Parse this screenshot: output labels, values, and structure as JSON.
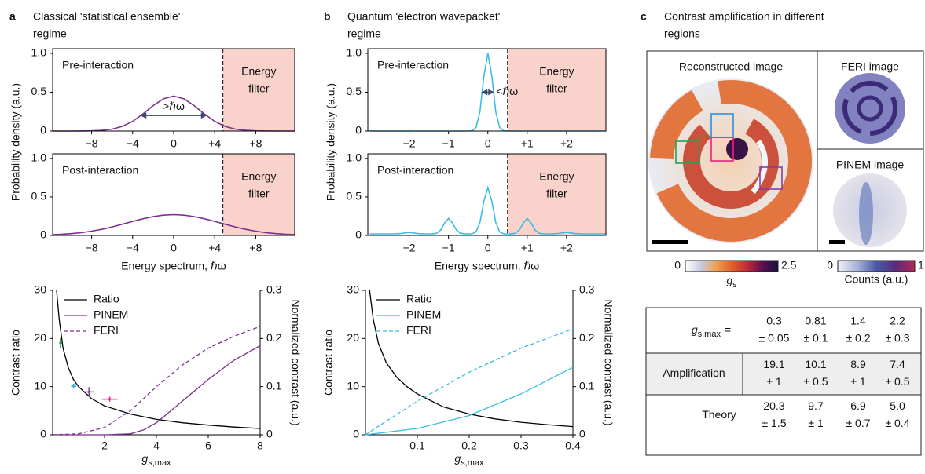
{
  "panels": [
    {
      "letter": "a",
      "title": [
        "Classical 'statistical ensemble'",
        "regime"
      ]
    },
    {
      "letter": "b",
      "title": [
        "Quantum 'electron wavepacket'",
        "regime"
      ]
    },
    {
      "letter": "c",
      "title": [
        "Contrast amplification in different",
        "regions"
      ]
    }
  ],
  "chart_data": [
    {
      "type": "distribution",
      "label": "Pre-interaction",
      "ylabel": "Probability density (a.u.)",
      "x": [
        -11.8,
        -11,
        -10,
        -9,
        -8,
        -7,
        -6,
        -5,
        -4,
        -3,
        -2,
        -1,
        0,
        1,
        2,
        3,
        4,
        5,
        6,
        7,
        8,
        9,
        10,
        11,
        11.8
      ],
      "series": [
        {
          "color": "#7d2f8f",
          "values": [
            0,
            0,
            0,
            0.001,
            0.003,
            0.009,
            0.025,
            0.061,
            0.125,
            0.219,
            0.327,
            0.415,
            0.45,
            0.415,
            0.327,
            0.219,
            0.125,
            0.061,
            0.025,
            0.009,
            0.003,
            0.001,
            0,
            0,
            0
          ]
        }
      ],
      "xlim": [
        -11.8,
        11.8
      ],
      "xticks": [
        {
          "value": -8,
          "label": "−8"
        },
        {
          "value": -4,
          "label": "−4"
        },
        0,
        {
          "value": 4,
          "label": "+4"
        },
        {
          "value": 8,
          "label": "+8"
        }
      ],
      "ylim": [
        0,
        1.06
      ],
      "yticks": [
        0,
        0.5,
        {
          "value": 1,
          "label": "1.0"
        }
      ],
      "filter": {
        "from": 4.8,
        "label": [
          "Energy",
          "filter"
        ],
        "color": "#f9d2cb"
      },
      "annotation": {
        "text": ">ℏω",
        "from": -3.2,
        "to": 3.2,
        "y": 0.2
      }
    },
    {
      "type": "distribution",
      "label": "Post-interaction",
      "xlabel": "Energy spectrum, ℏω",
      "x": [
        -11.8,
        -11,
        -10,
        -9,
        -8,
        -7,
        -6,
        -5,
        -4,
        -3,
        -2,
        -1,
        0,
        1,
        2,
        3,
        4,
        5,
        6,
        7,
        8,
        9,
        10,
        11,
        11.8
      ],
      "series": [
        {
          "color": "#7d2f8f",
          "values": [
            0.011,
            0.014,
            0.023,
            0.036,
            0.056,
            0.08,
            0.111,
            0.146,
            0.182,
            0.216,
            0.245,
            0.263,
            0.27,
            0.263,
            0.245,
            0.216,
            0.182,
            0.146,
            0.111,
            0.08,
            0.056,
            0.036,
            0.023,
            0.014,
            0.011
          ]
        }
      ],
      "xlim": [
        -11.8,
        11.8
      ],
      "xticks": [
        {
          "value": -8,
          "label": "−8"
        },
        {
          "value": -4,
          "label": "−4"
        },
        0,
        {
          "value": 4,
          "label": "+4"
        },
        {
          "value": 8,
          "label": "+8"
        }
      ],
      "ylim": [
        0,
        1.06
      ],
      "yticks": [
        0,
        0.5,
        {
          "value": 1,
          "label": "1.0"
        }
      ],
      "filter": {
        "from": 4.8,
        "label": [
          "Energy",
          "filter"
        ],
        "color": "#f9d2cb"
      }
    },
    {
      "type": "distribution",
      "label": "Pre-interaction",
      "ylabel": "Probability density (a.u.)",
      "x": [
        -3,
        -2.9,
        -2.8,
        -2.7,
        -2.6,
        -2.5,
        -2.4,
        -2.3,
        -2.2,
        -2.1,
        -2,
        -1.9,
        -1.8,
        -1.7,
        -1.6,
        -1.5,
        -1.4,
        -1.3,
        -1.2,
        -1.1,
        -1,
        -0.9,
        -0.8,
        -0.7,
        -0.6,
        -0.5,
        -0.4,
        -0.3,
        -0.2,
        -0.1,
        0,
        0.1,
        0.2,
        0.3,
        0.4,
        0.5,
        0.6,
        0.7,
        0.8,
        0.9,
        1,
        1.1,
        1.2,
        1.3,
        1.4,
        1.5,
        1.6,
        1.7,
        1.8,
        1.9,
        2,
        2.1,
        2.2,
        2.3,
        2.4,
        2.5,
        2.6,
        2.7,
        2.8,
        2.9,
        3
      ],
      "series": [
        {
          "color": "#3bbde3",
          "values": [
            0,
            0,
            0,
            0,
            0,
            0,
            0,
            0,
            0,
            0,
            0,
            0,
            0,
            0,
            0,
            0,
            0,
            0,
            0,
            0,
            0,
            0,
            0,
            0,
            0,
            0,
            0.004,
            0.044,
            0.249,
            0.707,
            1,
            0.707,
            0.249,
            0.044,
            0.004,
            0,
            0,
            0,
            0,
            0,
            0,
            0,
            0,
            0,
            0,
            0,
            0,
            0,
            0,
            0,
            0,
            0,
            0,
            0,
            0,
            0,
            0,
            0,
            0,
            0,
            0
          ]
        }
      ],
      "xlim": [
        -3.05,
        3.0
      ],
      "xticks": [
        {
          "value": -2,
          "label": "−2"
        },
        {
          "value": -1,
          "label": "−1"
        },
        0,
        {
          "value": 1,
          "label": "+1"
        },
        {
          "value": 2,
          "label": "+2"
        }
      ],
      "ylim": [
        0,
        1.06
      ],
      "yticks": [
        0,
        0.5,
        {
          "value": 1,
          "label": "1.0"
        }
      ],
      "filter": {
        "from": 0.5,
        "label": [
          "Energy",
          "filter"
        ],
        "color": "#f9d2cb"
      },
      "annotation": {
        "text": "<ℏω",
        "from": -0.15,
        "to": 0.15,
        "y": 0.5
      }
    },
    {
      "type": "distribution",
      "label": "Post-interaction",
      "xlabel": "Energy spectrum, ℏω",
      "x": [
        -3,
        -2.9,
        -2.8,
        -2.7,
        -2.6,
        -2.5,
        -2.4,
        -2.3,
        -2.2,
        -2.1,
        -2,
        -1.9,
        -1.8,
        -1.7,
        -1.6,
        -1.5,
        -1.4,
        -1.3,
        -1.2,
        -1.1,
        -1,
        -0.9,
        -0.8,
        -0.7,
        -0.6,
        -0.5,
        -0.4,
        -0.3,
        -0.2,
        -0.1,
        0,
        0.1,
        0.2,
        0.3,
        0.4,
        0.5,
        0.6,
        0.7,
        0.8,
        0.9,
        1,
        1.1,
        1.2,
        1.3,
        1.4,
        1.5,
        1.6,
        1.7,
        1.8,
        1.9,
        2,
        2.1,
        2.2,
        2.3,
        2.4,
        2.5,
        2.6,
        2.7,
        2.8,
        2.9,
        3
      ],
      "series": [
        {
          "color": "#3bbde3",
          "values": [
            0.02,
            0.02,
            0.02,
            0.02,
            0.02,
            0.02,
            0.02,
            0.022,
            0.025,
            0.034,
            0.04,
            0.034,
            0.025,
            0.022,
            0.02,
            0.02,
            0.021,
            0.029,
            0.07,
            0.161,
            0.22,
            0.161,
            0.07,
            0.029,
            0.021,
            0.02,
            0.022,
            0.046,
            0.169,
            0.444,
            0.62,
            0.444,
            0.169,
            0.046,
            0.022,
            0.02,
            0.021,
            0.029,
            0.07,
            0.161,
            0.22,
            0.161,
            0.07,
            0.029,
            0.021,
            0.02,
            0.02,
            0.022,
            0.025,
            0.034,
            0.04,
            0.034,
            0.025,
            0.022,
            0.02,
            0.02,
            0.02,
            0.02,
            0.02,
            0.02,
            0.02
          ]
        }
      ],
      "xlim": [
        -3.05,
        3.0
      ],
      "xticks": [
        {
          "value": -2,
          "label": "−2"
        },
        {
          "value": -1,
          "label": "−1"
        },
        0,
        {
          "value": 1,
          "label": "+1"
        },
        {
          "value": 2,
          "label": "+2"
        }
      ],
      "ylim": [
        0,
        1.06
      ],
      "yticks": [
        0,
        0.5,
        {
          "value": 1,
          "label": "1.0"
        }
      ],
      "filter": {
        "from": 0.5,
        "label": [
          "Energy",
          "filter"
        ],
        "color": "#f9d2cb"
      }
    },
    {
      "type": "dual",
      "ylabel": "Contrast ratio",
      "y2label": "Normalized contrast (a.u.)",
      "y2color": "#7d2f8f",
      "xlabel": {
        "symbol": "g",
        "subscript": "s,max"
      },
      "xlim": [
        0,
        8
      ],
      "xticks": [
        2,
        4,
        6,
        8
      ],
      "ylim": [
        0,
        30
      ],
      "yticks": [
        0,
        10,
        20,
        30
      ],
      "y2lim": [
        0,
        0.3
      ],
      "y2ticks": [
        0,
        0.1,
        0.2,
        0.3
      ],
      "series": [
        {
          "name": "Ratio",
          "color": "#000000",
          "x": [
            0.15,
            0.25,
            0.4,
            0.6,
            0.8,
            1,
            1.5,
            2,
            3,
            4,
            5,
            6,
            7,
            8
          ],
          "values": [
            30,
            24,
            18,
            14,
            11.5,
            10,
            7.5,
            6,
            4.3,
            3.2,
            2.5,
            2,
            1.6,
            1.3
          ]
        },
        {
          "name": "PINEM",
          "color": "#7d2f8f",
          "axis": "y2",
          "x": [
            0,
            2,
            3,
            3.5,
            4,
            5,
            6,
            7,
            8
          ],
          "values": [
            0,
            0,
            0.002,
            0.01,
            0.025,
            0.07,
            0.115,
            0.155,
            0.185
          ]
        },
        {
          "name": "FERI",
          "color": "#7d2f8f",
          "axis": "y2",
          "dash": true,
          "x": [
            0,
            1,
            2,
            3,
            4,
            5,
            6,
            7,
            8
          ],
          "values": [
            0,
            0.002,
            0.015,
            0.05,
            0.1,
            0.145,
            0.18,
            0.205,
            0.225
          ]
        }
      ],
      "points": [
        {
          "x": 0.3,
          "xerr": 0.05,
          "y": 19.1,
          "yerr": 1,
          "color": "#1fa650"
        },
        {
          "x": 0.81,
          "xerr": 0.1,
          "y": 10.1,
          "yerr": 0.5,
          "color": "#2bb3e0"
        },
        {
          "x": 1.4,
          "xerr": 0.2,
          "y": 8.9,
          "yerr": 1,
          "color": "#8a3d9a"
        },
        {
          "x": 2.2,
          "xerr": 0.3,
          "y": 7.4,
          "yerr": 0.5,
          "color": "#e8237f"
        }
      ]
    },
    {
      "type": "dual",
      "ylabel": "Contrast ratio",
      "y2label": "Normalized contrast (a.u.)",
      "y2color": "#3bbde3",
      "xlabel": {
        "symbol": "g",
        "subscript": "s,max"
      },
      "xlim": [
        0,
        0.4
      ],
      "xticks": [
        0.1,
        0.2,
        0.3,
        0.4
      ],
      "ylim": [
        0,
        30
      ],
      "yticks": [
        0,
        10,
        20,
        30
      ],
      "y2lim": [
        0,
        0.3
      ],
      "y2ticks": [
        0,
        0.1,
        0.2,
        0.3
      ],
      "series": [
        {
          "name": "Ratio",
          "color": "#000000",
          "x": [
            0.008,
            0.015,
            0.025,
            0.04,
            0.06,
            0.08,
            0.1,
            0.15,
            0.2,
            0.25,
            0.3,
            0.35,
            0.4
          ],
          "values": [
            30,
            24,
            19,
            15,
            12,
            10,
            8.5,
            5.8,
            4.3,
            3.3,
            2.6,
            2.1,
            1.7
          ]
        },
        {
          "name": "PINEM",
          "color": "#3bbde3",
          "axis": "y2",
          "x": [
            0,
            0.1,
            0.2,
            0.3,
            0.4
          ],
          "values": [
            0,
            0.013,
            0.04,
            0.085,
            0.14
          ]
        },
        {
          "name": "FERI",
          "color": "#3bbde3",
          "axis": "y2",
          "dash": true,
          "x": [
            0,
            0.05,
            0.1,
            0.15,
            0.2,
            0.25,
            0.3,
            0.35,
            0.4
          ],
          "values": [
            0,
            0.035,
            0.07,
            0.1,
            0.13,
            0.155,
            0.18,
            0.2,
            0.22
          ]
        }
      ]
    }
  ],
  "images": [
    {
      "label": "Reconstructed image",
      "colorbar": {
        "ticks": [
          0,
          2.5
        ],
        "colors": [
          "#ffffff",
          "#c8cbe0",
          "#f0a050",
          "#e0602a",
          "#c02a3a",
          "#5a1050",
          "#141040"
        ],
        "label": {
          "symbol": "g",
          "subscript": "s"
        }
      }
    },
    {
      "label": "FERI image"
    },
    {
      "label": "PINEM image",
      "colorbar": {
        "ticks": [
          0,
          1
        ],
        "colors": [
          "#f2f2f2",
          "#a8b4d8",
          "#4a5aa8",
          "#5a2a7a",
          "#b0285a"
        ],
        "label": "Counts (a.u.)"
      }
    }
  ],
  "table": {
    "column_colors": [
      "#1fa650",
      "#2bb3e0",
      "#8a3d9a",
      "#e8237f"
    ],
    "rows": [
      {
        "label": {
          "symbol": "g",
          "subscript": "s,max",
          "suffix": "="
        },
        "cells": [
          [
            "0.3",
            "± 0.05"
          ],
          [
            "0.81",
            "± 0.1"
          ],
          [
            "1.4",
            "± 0.2"
          ],
          [
            "2.2",
            "± 0.3"
          ]
        ]
      },
      {
        "label": "Amplification",
        "cells": [
          [
            "19.1",
            "± 1"
          ],
          [
            "10.1",
            "± 0.5"
          ],
          [
            "8.9",
            "± 1"
          ],
          [
            "7.4",
            "± 0.5"
          ]
        ]
      },
      {
        "label": "Theory",
        "cells": [
          [
            "20.3",
            "± 1.5"
          ],
          [
            "9.7",
            "± 1"
          ],
          [
            "6.9",
            "± 0.7"
          ],
          [
            "5.0",
            "± 0.4"
          ]
        ]
      }
    ]
  }
}
